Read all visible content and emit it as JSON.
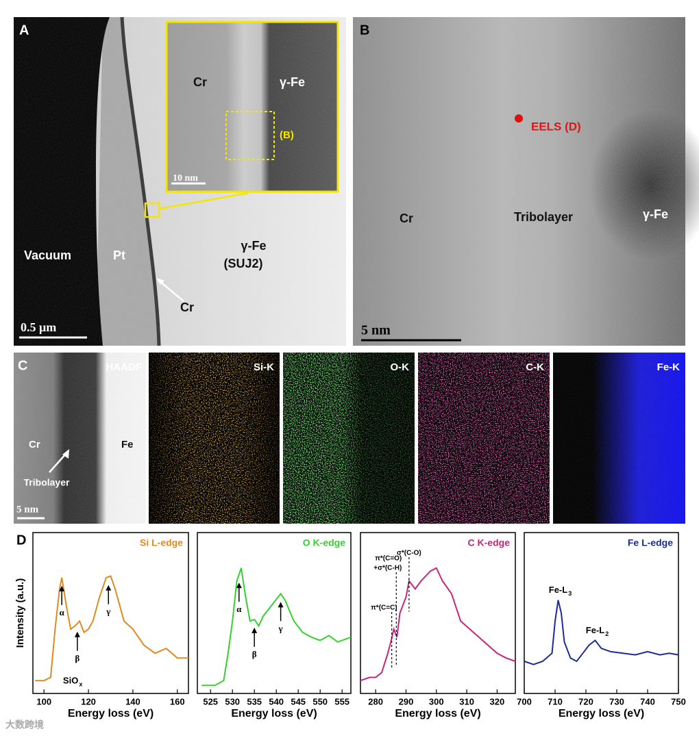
{
  "panels": {
    "A": {
      "label": "A",
      "vacuum": "Vacuum",
      "pt": "Pt",
      "fe": "γ-Fe",
      "fe_sub": "(SUJ2)",
      "cr": "Cr",
      "scale": "0.5 μm",
      "inset": {
        "cr": "Cr",
        "fe": "γ-Fe",
        "box": "(B)",
        "scale": "10 nm"
      }
    },
    "B": {
      "label": "B",
      "eels": "EELS (D)",
      "cr": "Cr",
      "tribolayer": "Tribolayer",
      "fe": "γ-Fe",
      "scale": "5 nm"
    },
    "C": {
      "label": "C",
      "haadf": "HAADF",
      "cr": "Cr",
      "fe": "Fe",
      "tribolayer": "Tribolayer",
      "scale": "5 nm",
      "maps": [
        "Si-K",
        "O-K",
        "C-K",
        "Fe-K"
      ]
    },
    "D": {
      "label": "D"
    }
  },
  "chart_data": [
    {
      "type": "line",
      "title": "Si L-edge",
      "color": "#e08a1e",
      "xlabel": "Energy loss (eV)",
      "ylabel": "Intensity (a.u.)",
      "xlim": [
        95,
        165
      ],
      "xticks": [
        100,
        120,
        140,
        160
      ],
      "ylim": [
        0,
        1
      ],
      "x": [
        96,
        100,
        103,
        105,
        107,
        108,
        110,
        112,
        114,
        116,
        118,
        120,
        122,
        125,
        128,
        130,
        132,
        134,
        136,
        140,
        145,
        150,
        155,
        160,
        165
      ],
      "values": [
        0.08,
        0.08,
        0.1,
        0.4,
        0.65,
        0.72,
        0.55,
        0.4,
        0.42,
        0.45,
        0.38,
        0.4,
        0.45,
        0.6,
        0.72,
        0.73,
        0.65,
        0.55,
        0.45,
        0.4,
        0.3,
        0.25,
        0.28,
        0.22,
        0.22
      ],
      "annotations": [
        {
          "kind": "arrow",
          "text": "α",
          "x": 108
        },
        {
          "kind": "arrow",
          "text": "β",
          "x": 115
        },
        {
          "kind": "arrow",
          "text": "γ",
          "x": 129
        },
        {
          "kind": "note",
          "text": "SiO",
          "sub": "x",
          "x": 112
        }
      ]
    },
    {
      "type": "line",
      "title": "O K-edge",
      "color": "#34d12e",
      "xlabel": "Energy loss (eV)",
      "xlim": [
        522,
        557
      ],
      "xticks": [
        525,
        530,
        535,
        540,
        545,
        550,
        555
      ],
      "ylim": [
        0,
        1
      ],
      "x": [
        523,
        526,
        528,
        529,
        530,
        531,
        532,
        533,
        534,
        535,
        536,
        537,
        539,
        541,
        542,
        544,
        546,
        548,
        550,
        552,
        554,
        557
      ],
      "values": [
        0.05,
        0.05,
        0.08,
        0.25,
        0.45,
        0.7,
        0.78,
        0.6,
        0.45,
        0.46,
        0.42,
        0.48,
        0.55,
        0.62,
        0.58,
        0.45,
        0.38,
        0.35,
        0.33,
        0.36,
        0.32,
        0.35
      ],
      "annotations": [
        {
          "kind": "arrow",
          "text": "α",
          "x": 531.5
        },
        {
          "kind": "arrow",
          "text": "β",
          "x": 535
        },
        {
          "kind": "arrow",
          "text": "γ",
          "x": 541
        }
      ]
    },
    {
      "type": "line",
      "title": "C K-edge",
      "color": "#c8237a",
      "xlabel": "Energy loss (eV)",
      "xlim": [
        275,
        326
      ],
      "xticks": [
        280,
        290,
        300,
        310,
        320
      ],
      "ylim": [
        0,
        1
      ],
      "x": [
        275,
        278,
        280,
        282,
        284,
        285,
        286,
        287,
        288,
        290,
        291,
        293,
        295,
        298,
        300,
        302,
        305,
        308,
        311,
        314,
        317,
        320,
        323,
        326
      ],
      "values": [
        0.08,
        0.1,
        0.1,
        0.13,
        0.25,
        0.32,
        0.4,
        0.35,
        0.5,
        0.6,
        0.7,
        0.65,
        0.7,
        0.76,
        0.78,
        0.7,
        0.62,
        0.45,
        0.4,
        0.35,
        0.3,
        0.25,
        0.22,
        0.2
      ],
      "annotations": [
        {
          "kind": "dashed",
          "text": "π*(C=C)",
          "x": 285.3
        },
        {
          "kind": "dashed",
          "text": "π*(C=O)",
          "text2": "+σ*(C-H)",
          "x": 286.8
        },
        {
          "kind": "dashed",
          "text": "σ*(C-O)",
          "x": 291
        }
      ]
    },
    {
      "type": "line",
      "title": "Fe L-edge",
      "color": "#1a2a9a",
      "xlabel": "Energy loss (eV)",
      "xlim": [
        700,
        750
      ],
      "xticks": [
        700,
        710,
        720,
        730,
        740,
        750
      ],
      "ylim": [
        0,
        1
      ],
      "x": [
        700,
        703,
        706,
        709,
        710,
        711,
        712,
        713,
        715,
        717,
        719,
        721,
        723,
        725,
        728,
        732,
        736,
        740,
        744,
        747,
        750
      ],
      "values": [
        0.2,
        0.18,
        0.2,
        0.25,
        0.45,
        0.58,
        0.5,
        0.32,
        0.22,
        0.2,
        0.25,
        0.3,
        0.33,
        0.28,
        0.26,
        0.25,
        0.24,
        0.26,
        0.24,
        0.25,
        0.24
      ],
      "annotations": [
        {
          "kind": "label",
          "text": "Fe-L",
          "sub": "3",
          "x": 711
        },
        {
          "kind": "label",
          "text": "Fe-L",
          "sub": "2",
          "x": 723
        }
      ]
    }
  ],
  "watermark": "大数跨境"
}
